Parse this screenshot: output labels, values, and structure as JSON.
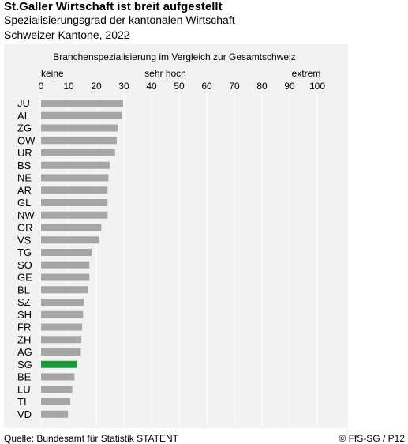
{
  "title": "St.Galler Wirtschaft ist breit aufgestellt",
  "subtitle": "Spezialisierungsgrad der kantonalen Wirtschaft",
  "subtitle2": "Schweizer Kantone, 2022",
  "source": "Quelle: Bundesamt für Statistik STATENT",
  "copyright": "© FfS-SG / P12",
  "colors": {
    "bar": "#a6a6a6",
    "highlight": "#1e9a3c",
    "panel": "#f2f2f2",
    "grid": "#ffffff"
  },
  "chart_data": {
    "type": "bar",
    "orientation": "horizontal",
    "title": "Branchenspezialisierung im Vergleich zur Gesamtschweiz",
    "scale_labels": [
      {
        "text": "keine",
        "at": 0
      },
      {
        "text": "sehr hoch",
        "at": 45
      },
      {
        "text": "extrem",
        "at": 96
      }
    ],
    "xlim": [
      0,
      100
    ],
    "xticks": [
      0,
      10,
      20,
      30,
      40,
      50,
      60,
      70,
      80,
      90,
      100
    ],
    "grid": true,
    "highlight": "SG",
    "categories": [
      "JU",
      "AI",
      "ZG",
      "OW",
      "UR",
      "BS",
      "NE",
      "AR",
      "GL",
      "NW",
      "GR",
      "VS",
      "TG",
      "SO",
      "GE",
      "BL",
      "SZ",
      "SH",
      "FR",
      "ZH",
      "AG",
      "SG",
      "BE",
      "LU",
      "TI",
      "VD"
    ],
    "values": [
      29.7,
      29.4,
      27.8,
      27.4,
      26.8,
      24.9,
      24.4,
      24.1,
      24.1,
      24.1,
      21.8,
      21.1,
      18.3,
      17.5,
      17.5,
      17.0,
      15.5,
      15.2,
      14.9,
      14.6,
      14.4,
      12.9,
      12.1,
      11.3,
      10.6,
      9.8
    ]
  }
}
